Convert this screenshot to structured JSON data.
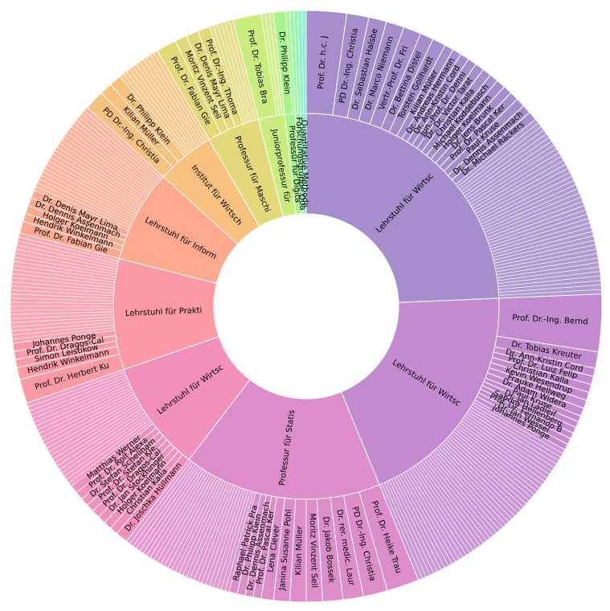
{
  "chart_data": {
    "type": "sunburst",
    "title": "",
    "inner_ring": [
      {
        "label": "Lehrstuhl für Wirtsc",
        "value": 110,
        "color": "#a68dcc"
      },
      {
        "label": "Lehrstuhl für Wirtsc",
        "value": 88,
        "color": "#c48ad0"
      },
      {
        "label": "Professur für Statis",
        "value": 75,
        "color": "#dd8dc9"
      },
      {
        "label": "Lehrstuhl für Wirtsc",
        "value": 42,
        "color": "#f28fbb"
      },
      {
        "label": "Lehrstuhl für Prakti",
        "value": 42,
        "color": "#fb9aa5"
      },
      {
        "label": "Lehrstuhl für Inform",
        "value": 35,
        "color": "#fda98f"
      },
      {
        "label": "Institut für Wirtsch",
        "value": 22,
        "color": "#f7c17f"
      },
      {
        "label": "Professur für Maschi",
        "value": 20,
        "color": "#e1d97a"
      },
      {
        "label": "Juniorprofessur für",
        "value": 10,
        "color": "#cbec7f"
      },
      {
        "label": "Professur für Digita",
        "value": 4,
        "color": "#a6f58c"
      },
      {
        "label": "Forschungsgruppe Qua",
        "value": 2,
        "color": "#8ef5a5"
      },
      {
        "label": "Quantitative Methode",
        "value": 2,
        "color": "#7fefc8"
      }
    ],
    "outer_ring": [
      [
        {
          "label": "Prof. Dr. h.c. J",
          "value": 9
        },
        {
          "label": "PD Dr.-Ing. Christia",
          "value": 5
        },
        {
          "label": "Dr. Sebastian Halsbe",
          "value": 4
        },
        {
          "label": "Dr. Marco Niemann",
          "value": 4
        },
        {
          "label": "Vertr.-Prof. Dr. Fri",
          "value": 4
        },
        {
          "label": "Dr. Bettina Distel",
          "value": 3
        },
        {
          "label": "Torsten Gollhardt",
          "value": 3
        },
        {
          "label": "Kilian Müller",
          "value": 2
        },
        {
          "label": "Dr. Andreas Hermann",
          "value": 2
        },
        {
          "label": "Dr. Ann-Kristin Cord",
          "value": 2
        },
        {
          "label": "Jun.-Prof. Dr. Denni",
          "value": 2
        },
        {
          "label": "Dr. Dr. Victor Tarat",
          "value": 2
        },
        {
          "label": "Christian Kalla",
          "value": 2
        },
        {
          "label": "Michael Koddebusch",
          "value": 2
        },
        {
          "label": "Holger Koelmann",
          "value": 2
        },
        {
          "label": "Dr. Jens Brunk",
          "value": 2
        },
        {
          "label": "Prof. Dr. Pascal Ker",
          "value": 2
        },
        {
          "label": "Paul Kruse",
          "value": 2
        },
        {
          "label": "Dr. Dennis Assenmach",
          "value": 2
        },
        {
          "label": "Dr. Michael Räckers",
          "value": 2
        },
        {
          "label": "",
          "value": 42
        }
      ],
      [
        {
          "label": "Prof. Dr.-Ing. Bernd",
          "value": 14
        },
        {
          "label": "Dr. Tobias Kreuter",
          "value": 4
        },
        {
          "label": "Dr. Ann-Kristin Cord",
          "value": 2
        },
        {
          "label": "Prof. Dr. Luiz Felip",
          "value": 2
        },
        {
          "label": "Christian Kalla",
          "value": 2
        },
        {
          "label": "Kevin Wesendrup",
          "value": 2
        },
        {
          "label": "Frauke Hellweg",
          "value": 2
        },
        {
          "label": "Dr. Adam Widera",
          "value": 2
        },
        {
          "label": "Paul Kruse",
          "value": 1.5
        },
        {
          "label": "Dr. Jan Ladleif",
          "value": 1.5
        },
        {
          "label": "Sandra Hellenberg",
          "value": 1.5
        },
        {
          "label": "Prof. Dr. Fernando B",
          "value": 1.5
        },
        {
          "label": "Dr. Jan Wessel",
          "value": 1.5
        },
        {
          "label": "Johannes Ponge",
          "value": 1.5
        },
        {
          "label": "",
          "value": 48
        }
      ],
      [
        {
          "label": "Prof. Dr. Heike Trau",
          "value": 8
        },
        {
          "label": "PD Dr.-Ing. Christia",
          "value": 6
        },
        {
          "label": "Dr. rer. medic. Laur",
          "value": 5
        },
        {
          "label": "Dr. Jakob Bossek",
          "value": 5
        },
        {
          "label": "Moritz Vinzent Seil",
          "value": 4
        },
        {
          "label": "Kilian Müller",
          "value": 4
        },
        {
          "label": "Janina Susanne Pohl",
          "value": 4
        },
        {
          "label": "Lena Clever",
          "value": 3
        },
        {
          "label": "Prof. Dr. Pascal Ker",
          "value": 2
        },
        {
          "label": "Dr. Dennis Assenmach",
          "value": 2
        },
        {
          "label": "Dr. Philipp Klein",
          "value": 2
        },
        {
          "label": "Raphael Patrick Pra",
          "value": 2
        },
        {
          "label": "",
          "value": 28
        }
      ],
      [
        {
          "label": "Dr. Joschka Hüllmann",
          "value": 3
        },
        {
          "label": "Christian Kalla",
          "value": 2
        },
        {
          "label": "Holger Koelmann",
          "value": 2
        },
        {
          "label": "Dr. Jan Stockhinger",
          "value": 2
        },
        {
          "label": "Prof. Dr. Dragos-Cal",
          "value": 2
        },
        {
          "label": "Prof. Dr. Stefan Kle",
          "value": 2
        },
        {
          "label": "Dr. Stefan Schellham",
          "value": 2
        },
        {
          "label": "Prof. Dr. Rolf Alexa",
          "value": 2
        },
        {
          "label": "Matthias Werner",
          "value": 2
        },
        {
          "label": "",
          "value": 23
        }
      ],
      [
        {
          "label": "Prof. Dr. Herbert Ku",
          "value": 6
        },
        {
          "label": "Hendrik Winkelmann",
          "value": 3
        },
        {
          "label": "Simon Leistikow",
          "value": 2
        },
        {
          "label": "Prof. Dr. Dragos-Cal",
          "value": 2
        },
        {
          "label": "Johannes Ponge",
          "value": 2
        },
        {
          "label": "",
          "value": 27
        }
      ],
      [
        {
          "label": "Prof. Dr. Fabian Gie",
          "value": 3
        },
        {
          "label": "Hendrik Winkelmann",
          "value": 2
        },
        {
          "label": "Holger Koelmann",
          "value": 2
        },
        {
          "label": "Dr. Dennis Assenmach",
          "value": 2
        },
        {
          "label": "Dr. Denis Mayr Lima",
          "value": 2
        },
        {
          "label": "",
          "value": 24
        }
      ],
      [
        {
          "label": "PD Dr.-Ing. Christia",
          "value": 5
        },
        {
          "label": "Kilian Müller",
          "value": 3
        },
        {
          "label": "Dr. Philipp Klein",
          "value": 3
        },
        {
          "label": "",
          "value": 11
        }
      ],
      [
        {
          "label": "Prof. Dr. Fabian Gie",
          "value": 5
        },
        {
          "label": "Moritz Vinzent Seil",
          "value": 3
        },
        {
          "label": "Dr. Denis Mayr Lima",
          "value": 3
        },
        {
          "label": "Prof. Dr.-Ing. Thoma",
          "value": 3
        },
        {
          "label": "",
          "value": 6
        }
      ],
      [
        {
          "label": "Prof. Dr. Tobias Bra",
          "value": 7
        },
        {
          "label": "",
          "value": 3
        }
      ],
      [
        {
          "label": "Dr. Philipp Klein",
          "value": 3
        },
        {
          "label": "",
          "value": 1
        }
      ],
      [
        {
          "label": "",
          "value": 2
        }
      ],
      [
        {
          "label": "",
          "value": 2
        }
      ]
    ]
  }
}
